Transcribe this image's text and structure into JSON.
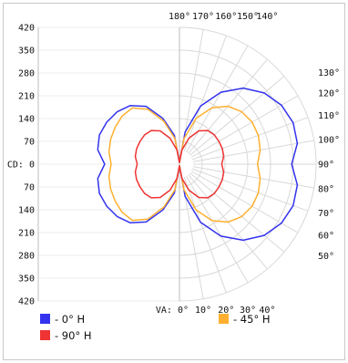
{
  "chart_data": {
    "type": "polar-line",
    "title": "",
    "radial_axis": {
      "ticks_top": [
        "420",
        "350",
        "280",
        "210",
        "140",
        "70"
      ],
      "center_label": "CD: 0",
      "ticks_bottom": [
        "70",
        "140",
        "210",
        "280",
        "350",
        "420"
      ],
      "range": [
        0,
        420
      ],
      "step": 70
    },
    "angle_labels_top": [
      "180°",
      "170°",
      "160°",
      "150°",
      "140°"
    ],
    "angle_labels_right": [
      "130°",
      "120°",
      "110°",
      "100°",
      "90°",
      "80°",
      "70°",
      "60°",
      "50°"
    ],
    "angle_labels_bottom": [
      "VA: 0°",
      "10°",
      "20°",
      "30°",
      "40°"
    ],
    "angles_deg": [
      0,
      10,
      20,
      30,
      40,
      50,
      60,
      70,
      80,
      90,
      100,
      110,
      120,
      130,
      140,
      150,
      160,
      170,
      180
    ],
    "series": [
      {
        "name": "- 0° H",
        "color": "#3333ee",
        "values": [
          5,
          100,
          190,
          255,
          305,
          340,
          362,
          372,
          368,
          345,
          368,
          372,
          362,
          340,
          305,
          255,
          190,
          100,
          5
        ]
      },
      {
        "name": "- 45° H",
        "color": "#ffb030",
        "values": [
          5,
          80,
          150,
          200,
          232,
          250,
          258,
          258,
          252,
          240,
          252,
          258,
          258,
          250,
          232,
          200,
          150,
          80,
          5
        ]
      },
      {
        "name": "- 90° H",
        "color": "#ee3333",
        "values": [
          5,
          45,
          85,
          118,
          135,
          140,
          140,
          140,
          138,
          130,
          138,
          140,
          140,
          140,
          135,
          118,
          85,
          45,
          5
        ]
      }
    ],
    "left_side": {
      "outer_series": "- 0° H",
      "description_values": {
        "- 0° H": [
          5,
          90,
          150,
          205,
          235,
          250,
          258,
          262,
          255,
          230,
          255,
          262,
          258,
          250,
          235,
          205,
          150,
          90,
          5
        ],
        "- 45° H": [
          5,
          80,
          140,
          195,
          225,
          230,
          228,
          225,
          220,
          210,
          220,
          225,
          228,
          230,
          225,
          195,
          140,
          80,
          5
        ],
        "- 90° H": [
          5,
          45,
          85,
          118,
          135,
          140,
          140,
          140,
          138,
          130,
          138,
          140,
          140,
          140,
          135,
          118,
          85,
          45,
          5
        ]
      }
    },
    "legend": [
      {
        "label": "- 0° H",
        "color": "#3333ee"
      },
      {
        "label": "- 45° H",
        "color": "#ffb030"
      },
      {
        "label": "- 90° H",
        "color": "#ee3333"
      }
    ]
  }
}
